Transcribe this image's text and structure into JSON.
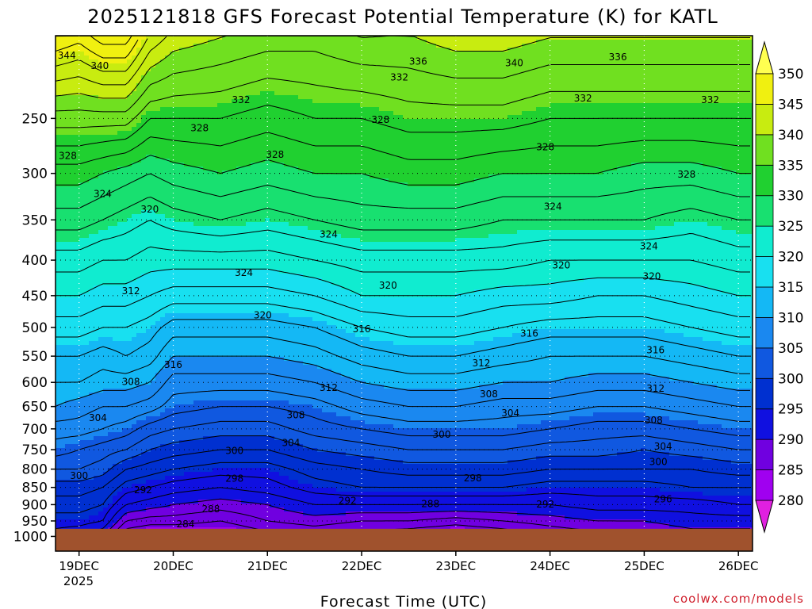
{
  "chart_data": {
    "type": "heatmap",
    "title": "2025121818 GFS Forecast Potential Temperature (K) for KATL",
    "xlabel": "Forecast Time (UTC)",
    "ylabel": "",
    "credit": "coolwx.com/models",
    "x_ticks": [
      "19DEC",
      "20DEC",
      "21DEC",
      "22DEC",
      "23DEC",
      "24DEC",
      "25DEC",
      "26DEC"
    ],
    "x_tick_days": [
      0.0,
      1.0,
      2.0,
      3.0,
      4.0,
      5.0,
      6.0,
      7.0
    ],
    "x_subtitle": "2025",
    "xlim_days": [
      -0.25,
      7.15
    ],
    "y_ticks": [
      250,
      300,
      350,
      400,
      450,
      500,
      550,
      600,
      650,
      700,
      750,
      800,
      850,
      900,
      950,
      1000
    ],
    "ylim": [
      1050,
      190
    ],
    "y_scale": "log",
    "grid": "dotted",
    "ground_level": 975,
    "ground_color": "#a0522d",
    "colorbar": {
      "levels": [
        280,
        285,
        290,
        295,
        300,
        305,
        310,
        315,
        320,
        325,
        330,
        335,
        340,
        345,
        350
      ],
      "colors": [
        "#e020e0",
        "#a000f0",
        "#7000e0",
        "#1010e0",
        "#0030d0",
        "#1058e0",
        "#1a88f0",
        "#14b8f5",
        "#18e0f0",
        "#10ecd0",
        "#18e070",
        "#20d030",
        "#70e020",
        "#c8ec10",
        "#f0f010",
        "#ffff50"
      ]
    },
    "theta_profiles": {
      "pressure": [
        1000,
        950,
        900,
        850,
        800,
        750,
        700,
        650,
        600,
        550,
        500,
        450,
        400,
        350,
        300,
        250,
        200
      ],
      "times": [
        -0.25,
        0.0,
        0.25,
        0.5,
        0.75,
        1.0,
        1.5,
        2.0,
        2.5,
        3.0,
        3.5,
        4.0,
        4.5,
        5.0,
        5.5,
        6.0,
        6.5,
        7.0,
        7.15
      ],
      "values": [
        [
          293,
          295,
          297,
          299,
          302,
          305,
          307,
          310,
          312,
          314,
          317,
          320,
          323,
          327,
          331,
          337,
          346
        ],
        [
          292,
          295,
          297,
          299,
          302,
          304,
          307,
          309,
          312,
          314,
          317,
          320,
          323,
          327,
          331,
          337,
          345
        ],
        [
          290,
          294,
          296,
          298,
          301,
          303,
          306,
          308,
          311,
          313,
          316,
          319,
          322,
          326,
          330,
          337,
          347
        ],
        [
          284,
          288,
          292,
          295,
          298,
          302,
          305,
          308,
          311,
          314,
          316,
          319,
          322,
          325,
          329,
          337,
          347
        ],
        [
          283,
          287,
          291,
          294,
          297,
          300,
          303,
          307,
          310,
          313,
          315,
          318,
          321,
          324,
          328,
          334,
          342
        ],
        [
          283,
          287,
          290,
          293,
          296,
          299,
          302,
          305,
          307,
          310,
          313,
          317,
          321,
          325,
          329,
          334,
          340
        ],
        [
          283,
          286,
          289,
          292,
          295,
          298,
          301,
          304,
          307,
          310,
          313,
          317,
          321,
          326,
          330,
          334,
          339
        ],
        [
          285,
          288,
          290,
          293,
          295,
          298,
          301,
          304,
          307,
          310,
          313,
          317,
          321,
          325,
          329,
          333,
          338
        ],
        [
          286,
          289,
          292,
          295,
          297,
          300,
          303,
          305,
          308,
          311,
          314,
          318,
          322,
          326,
          330,
          334,
          338
        ],
        [
          285,
          288,
          292,
          296,
          298,
          301,
          304,
          307,
          310,
          313,
          316,
          320,
          323,
          327,
          330,
          334,
          339
        ],
        [
          284,
          288,
          292,
          296,
          299,
          302,
          305,
          308,
          311,
          314,
          317,
          320,
          323,
          327,
          331,
          335,
          339
        ],
        [
          283,
          287,
          292,
          296,
          299,
          302,
          305,
          308,
          311,
          314,
          317,
          320,
          323,
          327,
          331,
          335,
          340
        ],
        [
          284,
          288,
          292,
          296,
          299,
          302,
          305,
          307,
          310,
          313,
          316,
          319,
          323,
          326,
          330,
          335,
          340
        ],
        [
          286,
          289,
          292,
          295,
          298,
          301,
          304,
          307,
          310,
          312,
          315,
          319,
          322,
          326,
          330,
          334,
          339
        ],
        [
          287,
          290,
          293,
          295,
          298,
          301,
          303,
          306,
          309,
          312,
          315,
          318,
          322,
          326,
          330,
          334,
          339
        ],
        [
          288,
          290,
          293,
          295,
          298,
          300,
          303,
          306,
          309,
          312,
          315,
          318,
          322,
          326,
          329,
          334,
          339
        ],
        [
          289,
          291,
          293,
          296,
          298,
          301,
          304,
          307,
          310,
          313,
          316,
          319,
          322,
          325,
          329,
          334,
          339
        ],
        [
          289,
          291,
          294,
          296,
          299,
          302,
          305,
          308,
          311,
          314,
          317,
          320,
          323,
          326,
          330,
          334,
          339
        ],
        [
          289,
          291,
          294,
          296,
          299,
          302,
          305,
          308,
          311,
          314,
          317,
          320,
          323,
          326,
          330,
          334,
          339
        ]
      ]
    },
    "contour_interval": 2,
    "contour_labels": [
      {
        "text": "344",
        "day": -0.13,
        "p": 203
      },
      {
        "text": "340",
        "day": 0.22,
        "p": 210
      },
      {
        "text": "336",
        "day": 3.6,
        "p": 207
      },
      {
        "text": "340",
        "day": 4.62,
        "p": 208
      },
      {
        "text": "336",
        "day": 5.72,
        "p": 204
      },
      {
        "text": "332",
        "day": 3.4,
        "p": 218
      },
      {
        "text": "332",
        "day": 1.72,
        "p": 235
      },
      {
        "text": "332",
        "day": 5.35,
        "p": 234
      },
      {
        "text": "332",
        "day": 6.7,
        "p": 235
      },
      {
        "text": "328",
        "day": 3.2,
        "p": 251
      },
      {
        "text": "328",
        "day": 1.28,
        "p": 258
      },
      {
        "text": "328",
        "day": -0.12,
        "p": 283
      },
      {
        "text": "328",
        "day": 2.08,
        "p": 282
      },
      {
        "text": "328",
        "day": 4.95,
        "p": 275
      },
      {
        "text": "328",
        "day": 6.45,
        "p": 301
      },
      {
        "text": "324",
        "day": 0.25,
        "p": 321
      },
      {
        "text": "324",
        "day": 5.03,
        "p": 335
      },
      {
        "text": "324",
        "day": 2.65,
        "p": 367
      },
      {
        "text": "324",
        "day": 6.05,
        "p": 382
      },
      {
        "text": "324",
        "day": 1.75,
        "p": 417
      },
      {
        "text": "320",
        "day": 0.75,
        "p": 338
      },
      {
        "text": "320",
        "day": 5.12,
        "p": 407
      },
      {
        "text": "320",
        "day": 6.08,
        "p": 422
      },
      {
        "text": "320",
        "day": 3.28,
        "p": 435
      },
      {
        "text": "320",
        "day": 1.95,
        "p": 480
      },
      {
        "text": "316",
        "day": 3.0,
        "p": 503
      },
      {
        "text": "316",
        "day": 4.78,
        "p": 510
      },
      {
        "text": "316",
        "day": 6.12,
        "p": 539
      },
      {
        "text": "316",
        "day": 1.0,
        "p": 566
      },
      {
        "text": "312",
        "day": 0.55,
        "p": 443
      },
      {
        "text": "312",
        "day": 4.27,
        "p": 563
      },
      {
        "text": "312",
        "day": 2.65,
        "p": 611
      },
      {
        "text": "312",
        "day": 6.12,
        "p": 612
      },
      {
        "text": "308",
        "day": 0.55,
        "p": 599
      },
      {
        "text": "308",
        "day": 4.35,
        "p": 624
      },
      {
        "text": "308",
        "day": 2.3,
        "p": 669
      },
      {
        "text": "308",
        "day": 6.1,
        "p": 680
      },
      {
        "text": "304",
        "day": 4.58,
        "p": 664
      },
      {
        "text": "304",
        "day": 0.2,
        "p": 675
      },
      {
        "text": "304",
        "day": 2.25,
        "p": 733
      },
      {
        "text": "304",
        "day": 6.2,
        "p": 742
      },
      {
        "text": "300",
        "day": 3.85,
        "p": 713
      },
      {
        "text": "300",
        "day": 1.65,
        "p": 753
      },
      {
        "text": "300",
        "day": 6.15,
        "p": 781
      },
      {
        "text": "300",
        "day": 0.0,
        "p": 818
      },
      {
        "text": "298",
        "day": 1.65,
        "p": 825
      },
      {
        "text": "298",
        "day": 4.18,
        "p": 824
      },
      {
        "text": "296",
        "day": 6.2,
        "p": 884
      },
      {
        "text": "292",
        "day": 0.68,
        "p": 857
      },
      {
        "text": "292",
        "day": 2.85,
        "p": 888
      },
      {
        "text": "292",
        "day": 4.95,
        "p": 899
      },
      {
        "text": "288",
        "day": 3.73,
        "p": 898
      },
      {
        "text": "288",
        "day": 1.4,
        "p": 913
      },
      {
        "text": "284",
        "day": 1.13,
        "p": 960
      }
    ]
  }
}
